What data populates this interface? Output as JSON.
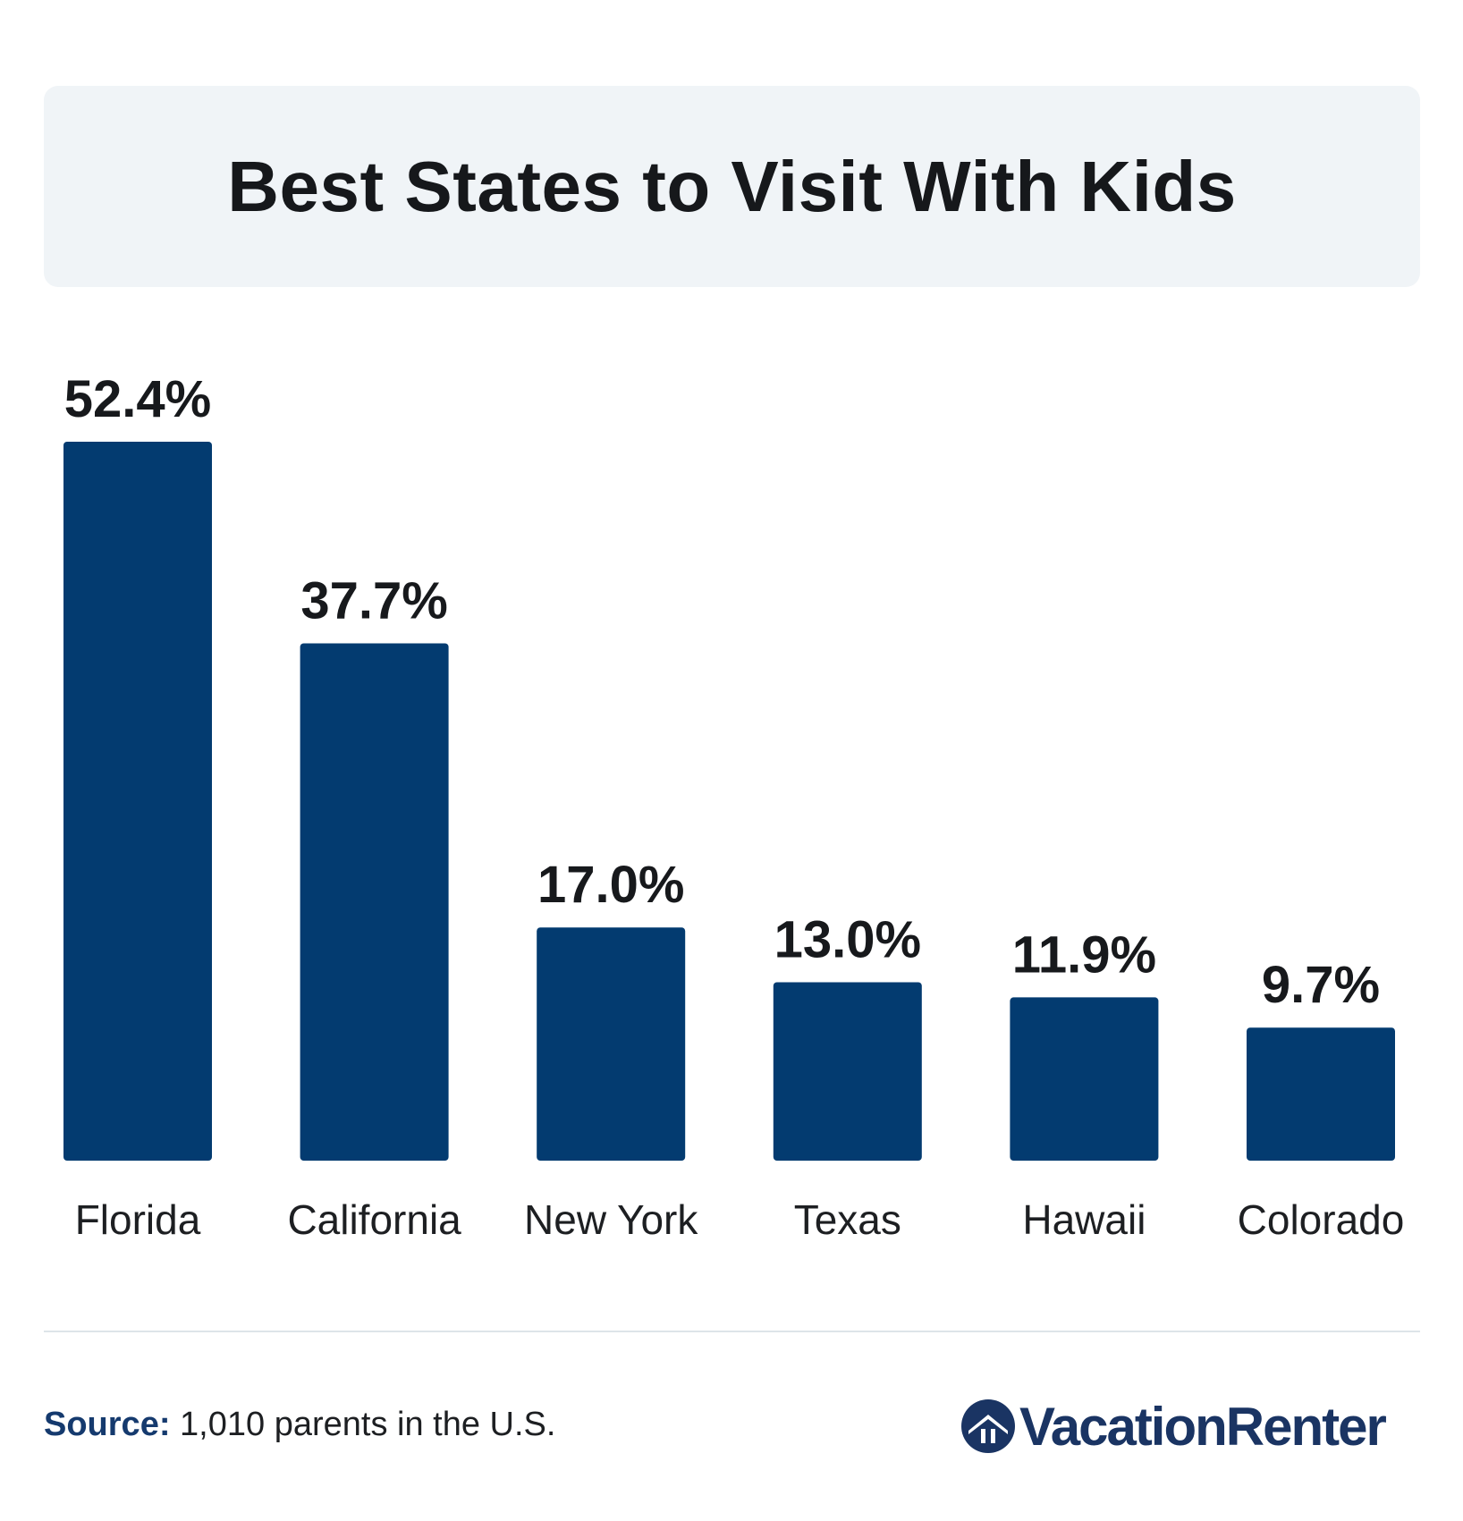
{
  "title": "Best States to Visit With Kids",
  "colors": {
    "bar": "#033b70",
    "banner": "#f0f4f7",
    "source_label": "#153a6e",
    "logo": "#1a3463"
  },
  "chart_data": {
    "type": "bar",
    "title": "Best States to Visit With Kids",
    "categories": [
      "Florida",
      "California",
      "New York",
      "Texas",
      "Hawaii",
      "Colorado"
    ],
    "values": [
      52.4,
      37.7,
      17.0,
      13.0,
      11.9,
      9.7
    ],
    "value_labels": [
      "52.4%",
      "37.7%",
      "17.0%",
      "13.0%",
      "11.9%",
      "9.7%"
    ],
    "unit": "%",
    "xlabel": "",
    "ylabel": "",
    "ylim": [
      0,
      52.4
    ],
    "grid": false,
    "legend": "none"
  },
  "footer": {
    "source_label": "Source:",
    "source_text": " 1,010 parents in the U.S.",
    "brand": "VacationRenter",
    "brand_icon": "house-in-circle-icon"
  }
}
